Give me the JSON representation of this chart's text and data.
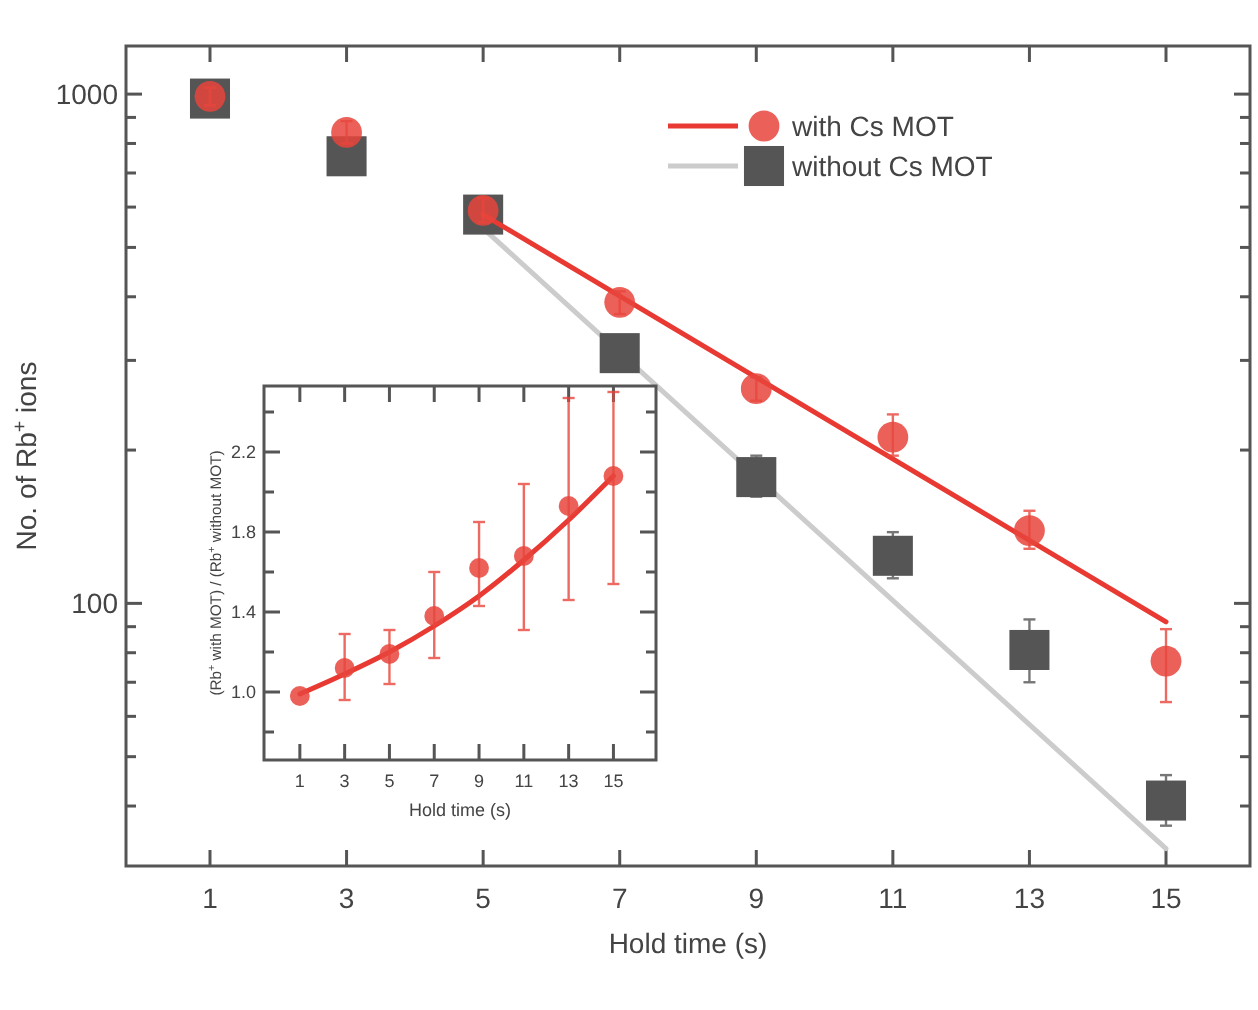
{
  "chart_data": [
    {
      "type": "scatter",
      "xlabel": "Hold time (s)",
      "ylabel": "No. of Rb$^{+}$ ions",
      "log": "y",
      "legend": "top right",
      "marker": "circle",
      "xlim": [
        -0.23,
        16.23
      ],
      "ylim": [
        30.5,
        1243
      ],
      "xticks": [
        1,
        3,
        5,
        7,
        9,
        11,
        13,
        15
      ],
      "yticks": [
        {
          "value": 40,
          "label": null
        },
        {
          "value": 50,
          "label": null
        },
        {
          "value": 60,
          "label": null
        },
        {
          "value": 70,
          "label": null
        },
        {
          "value": 80,
          "label": null
        },
        {
          "value": 90,
          "label": null
        },
        100,
        {
          "value": 200,
          "label": null
        },
        {
          "value": 300,
          "label": null
        },
        {
          "value": 400,
          "label": null
        },
        {
          "value": 500,
          "label": null
        },
        {
          "value": 600,
          "label": null
        },
        {
          "value": 700,
          "label": null
        },
        {
          "value": 800,
          "label": null
        },
        {
          "value": 900,
          "label": null
        },
        1000
      ],
      "x": [
        1,
        3,
        5,
        7,
        9,
        11,
        13,
        15
      ],
      "series": [
        {
          "name": "with Cs MOT",
          "color": "#e8453c",
          "values": [
            990,
            841,
            591,
            390,
            264,
            212,
            139,
            77
          ],
          "errors": [
            [
              950,
              1030
            ],
            [
              800,
              885
            ],
            [
              560,
              625
            ],
            [
              370,
              410
            ],
            [
              250,
              278
            ],
            [
              195,
              235
            ],
            [
              128,
              152
            ],
            [
              64,
              89
            ]
          ]
        },
        {
          "type": "line",
          "color": "#e83a32",
          "marker": "none",
          "x": [
            5,
            15
          ],
          "values": [
            580,
            92
          ]
        },
        {
          "name": "without Cs MOT",
          "color": "#555555",
          "marker": "square",
          "values": [
            980,
            755,
            580,
            310,
            177,
            124,
            81,
            41
          ],
          "errors": [
            null,
            null,
            null,
            [
              290,
              335
            ],
            [
              162,
              195
            ],
            [
              112,
              138
            ],
            [
              70,
              93
            ],
            [
              36.6,
              46
            ]
          ]
        },
        {
          "type": "line",
          "color": "#cccccc",
          "marker": "none",
          "x": [
            5,
            15
          ],
          "values": [
            545,
            33
          ]
        }
      ]
    },
    {
      "type": "scatter",
      "xlabel": "Hold time (s)",
      "ylabel": "(Rb$^{+}$ with MOT) / (Rb$^{+}$ without MOT)",
      "marker": "circle",
      "xlim": [
        -0.6,
        16.9
      ],
      "ylim": [
        0.66,
        2.53
      ],
      "xticks": [
        1,
        3,
        5,
        7,
        9,
        11,
        13,
        15
      ],
      "yticks": [
        {
          "value": 0.8,
          "label": null
        },
        {
          "value": 1,
          "label": "1.0"
        },
        {
          "value": 1.2,
          "label": null
        },
        1.4,
        {
          "value": 1.6,
          "label": null
        },
        1.8,
        {
          "value": 2.0,
          "label": null
        },
        2.2,
        {
          "value": 2.4,
          "label": null
        }
      ],
      "x": [
        1,
        3,
        5,
        7,
        9,
        11,
        13,
        15
      ],
      "series": [
        {
          "color": "#e8453c",
          "values": [
            0.98,
            1.12,
            1.19,
            1.38,
            1.62,
            1.68,
            1.93,
            2.08
          ],
          "errors": [
            null,
            [
              0.96,
              1.29
            ],
            [
              1.04,
              1.31
            ],
            [
              1.17,
              1.6
            ],
            [
              1.43,
              1.85
            ],
            [
              1.31,
              2.04
            ],
            [
              1.46,
              2.47
            ],
            [
              1.54,
              2.5
            ]
          ]
        },
        {
          "type": "line",
          "color": "#e83a32",
          "marker": "none",
          "x": [
            1,
            3,
            5,
            7,
            9,
            11,
            13,
            15
          ],
          "values": [
            0.99,
            1.09,
            1.2,
            1.33,
            1.48,
            1.66,
            1.86,
            2.08
          ]
        }
      ]
    }
  ]
}
